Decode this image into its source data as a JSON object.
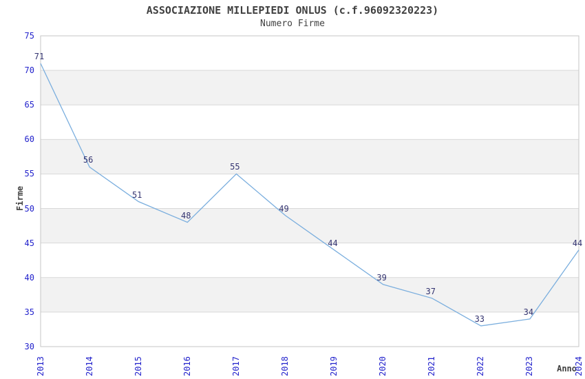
{
  "chart_data": {
    "type": "line",
    "title": "ASSOCIAZIONE MILLEPIEDI ONLUS (c.f.96092320223)",
    "subtitle": "Numero Firme",
    "xlabel": "Anno",
    "ylabel": "Firme",
    "categories": [
      "2013",
      "2014",
      "2015",
      "2016",
      "2017",
      "2018",
      "2019",
      "2020",
      "2021",
      "2022",
      "2023",
      "2024"
    ],
    "series": [
      {
        "name": "Numero Firme",
        "values": [
          71,
          56,
          51,
          48,
          55,
          49,
          44,
          39,
          37,
          33,
          34,
          44
        ]
      }
    ],
    "ylim": [
      30,
      75
    ],
    "yticks": [
      30,
      35,
      40,
      45,
      50,
      55,
      60,
      65,
      70,
      75
    ],
    "grid": true,
    "legend": "none",
    "band_fill_ranges": [
      [
        35,
        40
      ],
      [
        45,
        50
      ],
      [
        55,
        60
      ],
      [
        65,
        70
      ]
    ],
    "colors": {
      "line": "#7aaede",
      "tick_label": "#2222cc",
      "data_label": "#333370",
      "band": "#f2f2f2",
      "grid": "#d9d9d9",
      "border": "#c6c6c6",
      "text": "#404040",
      "background": "#ffffff"
    }
  }
}
